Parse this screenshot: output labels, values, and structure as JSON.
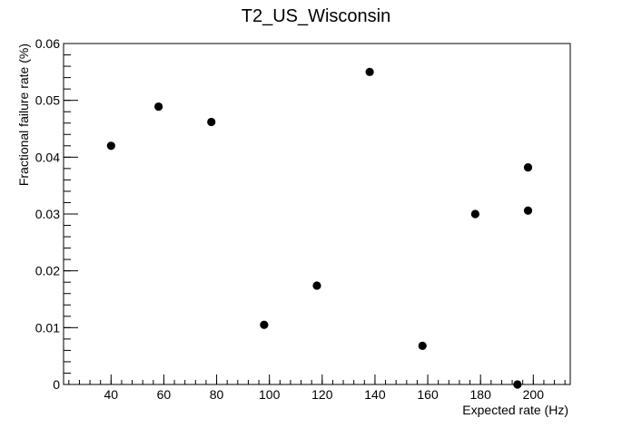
{
  "chart_data": {
    "type": "scatter",
    "title": "T2_US_Wisconsin",
    "xlabel": "Expected rate (Hz)",
    "ylabel": "Fractional failure rate (%)",
    "xlim": [
      22,
      214
    ],
    "ylim": [
      0,
      0.06
    ],
    "x_ticks": [
      40,
      60,
      80,
      100,
      120,
      140,
      160,
      180,
      200
    ],
    "y_ticks": [
      0,
      0.01,
      0.02,
      0.03,
      0.04,
      0.05,
      0.06
    ],
    "x_tick_labels": [
      "40",
      "60",
      "80",
      "100",
      "120",
      "140",
      "160",
      "180",
      "200"
    ],
    "y_tick_labels": [
      "0",
      "0.01",
      "0.02",
      "0.03",
      "0.04",
      "0.05",
      "0.06"
    ],
    "grid": false,
    "legend": "none",
    "marker_color": "#000000",
    "points": [
      {
        "x": 40,
        "y": 0.042
      },
      {
        "x": 58,
        "y": 0.0489
      },
      {
        "x": 78,
        "y": 0.0462
      },
      {
        "x": 98,
        "y": 0.0105
      },
      {
        "x": 118,
        "y": 0.0174
      },
      {
        "x": 138,
        "y": 0.055
      },
      {
        "x": 158,
        "y": 0.0068
      },
      {
        "x": 178,
        "y": 0.03
      },
      {
        "x": 194,
        "y": 0.0
      },
      {
        "x": 198,
        "y": 0.0306
      },
      {
        "x": 198,
        "y": 0.0382
      }
    ]
  }
}
